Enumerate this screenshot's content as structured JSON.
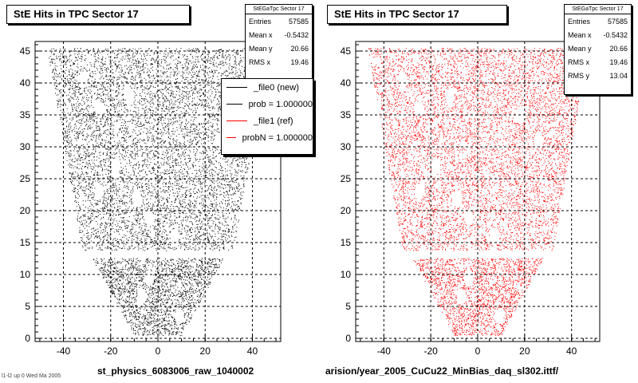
{
  "chart_data": [
    {
      "type": "scatter",
      "title": "StE Hits in TPC Sector 17",
      "color": "#000000",
      "xlim": [
        -52,
        52
      ],
      "ylim": [
        -0.5,
        46.5
      ],
      "x_ticks": [
        "-40",
        "-20",
        "0",
        "20",
        "40"
      ],
      "y_ticks": [
        "0",
        "5",
        "10",
        "15",
        "20",
        "25",
        "30",
        "35",
        "40",
        "45"
      ],
      "grid": true,
      "stats": {
        "header": "StEGaTpc Sector 17",
        "rows": [
          {
            "label": "Entries",
            "value": "57585"
          },
          {
            "label": "Mean x",
            "value": "-0.5432"
          },
          {
            "label": "Mean y",
            "value": "20.66"
          },
          {
            "label": "RMS x",
            "value": "19.46"
          }
        ]
      },
      "legend": {
        "placement": "top-right",
        "items": [
          {
            "label": "_file0 (new)",
            "color": "#000000"
          },
          {
            "label": "prob = 1.000000",
            "color": "#000000"
          },
          {
            "label": "_file1 (ref)",
            "color": "#ff0000"
          },
          {
            "label": "probN = 1.000000",
            "color": "#ff0000"
          }
        ]
      },
      "footer": "st_physics_6083006_raw_1040002"
    },
    {
      "type": "scatter",
      "title": "StE Hits in TPC Sector 17",
      "color": "#ff0000",
      "xlim": [
        -52,
        52
      ],
      "ylim": [
        -0.5,
        46.5
      ],
      "x_ticks": [
        "-40",
        "-20",
        "0",
        "20",
        "40"
      ],
      "y_ticks": [
        "0",
        "5",
        "10",
        "15",
        "20",
        "25",
        "30",
        "35",
        "40",
        "45"
      ],
      "grid": true,
      "stats": {
        "header": "StEGaTpc Sector 17",
        "rows": [
          {
            "label": "Entries",
            "value": "57585"
          },
          {
            "label": "Mean x",
            "value": "-0.5432"
          },
          {
            "label": "Mean y",
            "value": "20.66"
          },
          {
            "label": "RMS x",
            "value": "19.46"
          },
          {
            "label": "RMS y",
            "value": "13.04"
          }
        ]
      },
      "footer": "arision/year_2005_CuCu22_MinBias_daq_sl302.ittf/"
    }
  ],
  "corner_note": "l1-l2 up 0 Wed Ma 2005"
}
